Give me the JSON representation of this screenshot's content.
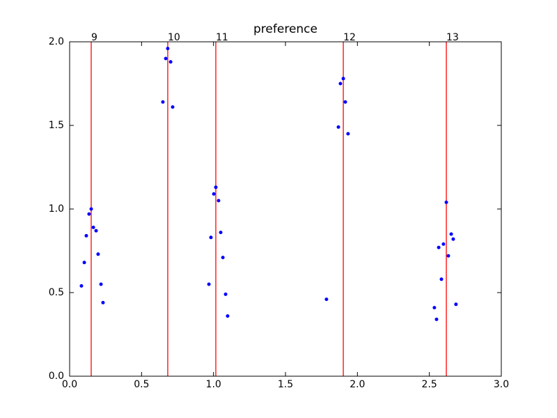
{
  "chart_data": {
    "type": "scatter",
    "title": "preference",
    "color": "#0000ff",
    "vline_color": "#ff0000",
    "x": [
      0.082,
      0.102,
      0.116,
      0.135,
      0.15,
      0.165,
      0.184,
      0.198,
      0.218,
      0.232,
      0.648,
      0.668,
      0.682,
      0.702,
      0.716,
      0.968,
      0.982,
      1.002,
      1.016,
      1.035,
      1.05,
      1.065,
      1.084,
      1.098,
      1.785,
      1.868,
      1.882,
      1.902,
      1.916,
      1.935,
      2.535,
      2.55,
      2.565,
      2.584,
      2.598,
      2.618,
      2.632,
      2.652,
      2.666,
      2.685
    ],
    "values": [
      0.54,
      0.68,
      0.84,
      0.97,
      1.0,
      0.89,
      0.87,
      0.73,
      0.55,
      0.44,
      1.64,
      1.9,
      1.96,
      1.88,
      1.61,
      0.55,
      0.83,
      1.09,
      1.13,
      1.05,
      0.86,
      0.71,
      0.49,
      0.36,
      0.46,
      1.49,
      1.75,
      1.78,
      1.64,
      1.45,
      0.41,
      0.34,
      0.77,
      0.58,
      0.79,
      1.04,
      0.72,
      0.85,
      0.82,
      0.43
    ],
    "vlines": [
      {
        "x": 0.15,
        "label": "9"
      },
      {
        "x": 0.682,
        "label": "10"
      },
      {
        "x": 1.016,
        "label": "11"
      },
      {
        "x": 1.902,
        "label": "12"
      },
      {
        "x": 2.618,
        "label": "13"
      }
    ],
    "xlim": [
      0,
      3
    ],
    "xticks": [
      {
        "value": 0,
        "label": "0.0"
      },
      0.5,
      {
        "value": 1,
        "label": "1.0"
      },
      1.5,
      {
        "value": 2,
        "label": "2.0"
      },
      2.5,
      {
        "value": 3,
        "label": "3.0"
      }
    ],
    "ylim": [
      0,
      2
    ],
    "yticks": [
      {
        "value": 0,
        "label": "0.0"
      },
      0.5,
      {
        "value": 1,
        "label": "1.0"
      },
      1.5,
      {
        "value": 2,
        "label": "2.0"
      }
    ]
  }
}
